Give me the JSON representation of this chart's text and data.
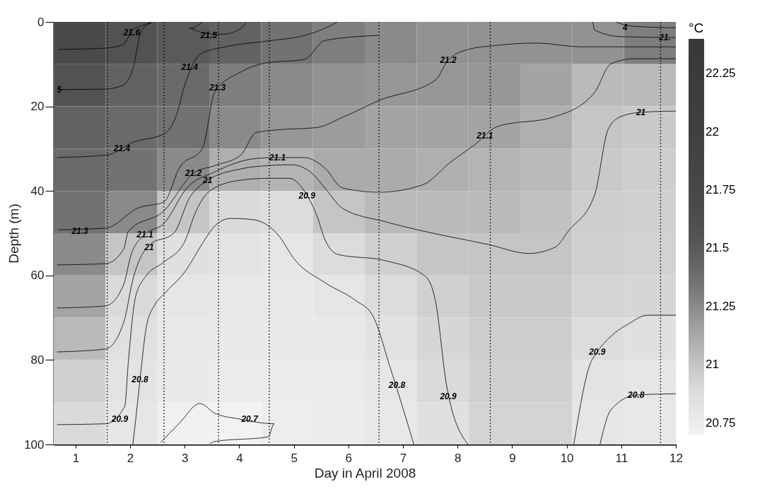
{
  "chart_data": {
    "type": "heatmap",
    "xlabel": "Day in April 2008",
    "ylabel": "Depth (m)",
    "clabel": "°C",
    "xlim": [
      0.6,
      12
    ],
    "xticks": [
      1,
      2,
      3,
      4,
      5,
      6,
      7,
      8,
      9,
      10,
      11,
      12
    ],
    "ylim": [
      100,
      0
    ],
    "yticks": [
      0,
      20,
      40,
      60,
      80,
      100
    ],
    "clim": [
      20.7,
      22.4
    ],
    "cticks": [
      20.75,
      21,
      21.25,
      21.5,
      21.75,
      22,
      22.25
    ],
    "grid": false,
    "x": [
      1.075,
      2.025,
      2.975,
      3.925,
      4.875,
      5.825,
      6.775,
      7.725,
      8.675,
      9.625,
      10.575,
      11.525
    ],
    "y": [
      5,
      15,
      25,
      35,
      45,
      55,
      65,
      75,
      85,
      95
    ],
    "cells": [
      [
        21.7,
        21.55,
        21.5,
        21.45,
        21.35,
        21.3,
        21.25,
        21.22,
        21.22,
        21.22,
        21.22,
        21.3
      ],
      [
        21.55,
        21.45,
        21.4,
        21.3,
        21.25,
        21.22,
        21.2,
        21.2,
        21.2,
        21.15,
        21.05,
        21.05
      ],
      [
        21.45,
        21.4,
        21.35,
        21.25,
        21.2,
        21.18,
        21.15,
        21.15,
        21.15,
        21.1,
        21.0,
        20.98
      ],
      [
        21.4,
        21.35,
        21.25,
        21.1,
        21.08,
        21.12,
        21.12,
        21.1,
        21.08,
        21.05,
        20.98,
        20.96
      ],
      [
        21.35,
        21.25,
        21.0,
        20.9,
        20.88,
        21.0,
        21.05,
        21.05,
        21.05,
        21.02,
        20.96,
        20.95
      ],
      [
        21.25,
        21.0,
        20.85,
        20.82,
        20.8,
        20.88,
        20.95,
        21.0,
        21.0,
        21.0,
        20.95,
        20.94
      ],
      [
        21.15,
        20.9,
        20.8,
        20.78,
        20.78,
        20.8,
        20.88,
        20.95,
        20.98,
        20.98,
        20.93,
        20.92
      ],
      [
        21.05,
        20.85,
        20.78,
        20.77,
        20.77,
        20.78,
        20.83,
        20.92,
        20.96,
        20.96,
        20.88,
        20.85
      ],
      [
        20.95,
        20.82,
        20.77,
        20.76,
        20.76,
        20.76,
        20.8,
        20.9,
        20.95,
        20.95,
        20.82,
        20.8
      ],
      [
        20.9,
        20.8,
        20.72,
        20.7,
        20.74,
        20.75,
        20.78,
        20.85,
        20.93,
        20.93,
        20.8,
        20.78
      ]
    ],
    "series": [
      {
        "type": "line",
        "color": "#000000",
        "x": [
          0.69,
          1.55,
          1.88,
          1.97,
          2.03,
          2.24,
          2.39
        ],
        "values": [
          6.5,
          6.2,
          5.3,
          3.5,
          2,
          0.8,
          0
        ]
      },
      {
        "type": "line",
        "color": "#000000",
        "x": [
          0.69,
          1.55,
          1.88,
          2.06,
          2.2,
          2.39
        ],
        "values": [
          16,
          15.9,
          14.9,
          10.7,
          2.3,
          0.2
        ]
      },
      {
        "type": "line",
        "color": "#000000",
        "x": [
          3.33,
          3.09,
          3.33,
          3.7,
          4.02,
          4.12
        ],
        "values": [
          0,
          1.5,
          2.6,
          2.9,
          1.6,
          0.2
        ]
      },
      {
        "type": "line",
        "color": "#000000",
        "x": [
          0.66,
          1.58,
          2.05,
          2.62,
          2.85,
          3.0,
          3.15,
          3.3,
          3.7,
          4.53,
          5.2,
          5.57,
          5.8
        ],
        "values": [
          32.1,
          31.5,
          28.5,
          26.5,
          22,
          15,
          10,
          7.5,
          6,
          4.5,
          3.2,
          1.5,
          0
        ]
      },
      {
        "type": "line",
        "color": "#000000",
        "x": [
          0.69,
          1.55,
          2.15,
          2.62,
          2.9,
          3.33,
          3.55,
          4.02,
          4.49,
          5.19,
          5.57,
          6.55
        ],
        "values": [
          49.2,
          48.8,
          44,
          42.6,
          34.6,
          29.8,
          16.6,
          11.9,
          9.7,
          8.9,
          4.4,
          3.2
        ]
      },
      {
        "type": "line",
        "color": "#000000",
        "x": [
          0.66,
          1.55,
          1.88,
          1.97,
          2.62,
          3.16,
          3.55,
          4.02,
          4.31,
          4.64,
          5.42,
          5.89,
          6.56,
          7.6,
          7.83,
          8.2,
          8.68,
          9.45,
          10.27,
          12.0
        ],
        "values": [
          57.5,
          57.2,
          53.8,
          49.5,
          44.7,
          35.8,
          34,
          31.6,
          26.2,
          25.6,
          25,
          22.6,
          18.6,
          13.7,
          9,
          6.5,
          5.6,
          5,
          5.9,
          5.9
        ]
      },
      {
        "type": "line",
        "color": "#000000",
        "x": [
          0.66,
          1.55,
          1.88,
          2.02,
          2.27,
          2.62,
          3.04,
          3.55,
          4.26,
          4.7,
          5.19,
          5.57,
          5.89,
          6.56,
          7.37,
          7.85,
          8.34,
          8.72,
          9.79,
          10.51,
          10.81,
          11.24,
          12.0
        ],
        "values": [
          67.7,
          67.2,
          62.2,
          55,
          50.3,
          47.7,
          39.3,
          35.5,
          32.4,
          32.1,
          32.1,
          34.6,
          39.3,
          40.3,
          38.5,
          33.4,
          28.8,
          24.8,
          22.4,
          16.7,
          9.9,
          8.7,
          8.7
        ]
      },
      {
        "type": "line",
        "color": "#000000",
        "x": [
          0.66,
          1.55,
          1.88,
          2.06,
          2.35,
          2.8,
          3.09,
          3.42,
          4.02,
          4.53,
          4.96,
          5.33,
          5.57,
          5.89,
          6.68,
          7.37,
          8.57,
          9.31,
          9.79,
          10.03,
          10.51,
          10.76,
          10.99,
          11.36,
          12.0
        ],
        "values": [
          78.1,
          77.4,
          71.2,
          60.5,
          52.8,
          50,
          41.6,
          37.5,
          34.8,
          34,
          33.8,
          35.8,
          39.3,
          44.1,
          47.3,
          49.5,
          52.7,
          54.8,
          53.3,
          49.5,
          41,
          25.4,
          22.4,
          21.4,
          21.1
        ]
      },
      {
        "type": "line",
        "color": "#000000",
        "x": [
          0.66,
          1.55,
          1.9,
          1.97,
          2.1,
          2.3,
          2.6,
          3.0,
          3.2,
          3.46,
          4.0,
          4.53,
          4.91,
          5.24,
          5.42,
          5.57,
          5.8,
          6.68,
          7.41,
          7.6,
          7.8,
          8.19
        ],
        "values": [
          95.3,
          95.1,
          91,
          80,
          65,
          60,
          57,
          52,
          45,
          40,
          37.5,
          37,
          37,
          41,
          45.8,
          51.5,
          55,
          56.5,
          60.2,
          66.4,
          86.1,
          100
        ]
      },
      {
        "type": "line",
        "color": "#000000",
        "x": [
          2.05,
          2.12,
          2.17,
          2.3,
          2.45,
          2.62,
          3.0,
          3.37,
          3.55,
          3.84,
          4.26,
          4.73,
          5.0,
          5.57,
          6.13,
          6.44,
          6.78,
          7.2
        ],
        "values": [
          100,
          92,
          86,
          72,
          67,
          64.4,
          59.2,
          51.5,
          48.3,
          46.5,
          46.8,
          50.7,
          56,
          61.7,
          65.9,
          69.4,
          82.4,
          100
        ]
      },
      {
        "type": "line",
        "color": "#000000",
        "x": [
          2.56,
          2.9,
          3.28,
          3.55,
          4.02,
          4.64,
          4.53,
          3.55,
          3.46
        ],
        "values": [
          99.5,
          95,
          90.3,
          92.6,
          94,
          95.1,
          98.2,
          99.3,
          99.8
        ]
      },
      {
        "type": "line",
        "color": "#000000",
        "x": [
          10.13,
          10.42,
          10.56,
          10.81,
          11.14,
          11.48,
          12.0
        ],
        "values": [
          100,
          81.3,
          78.1,
          74.4,
          71.4,
          69.4,
          69.4
        ]
      },
      {
        "type": "line",
        "color": "#000000",
        "x": [
          10.61,
          10.81,
          11.27,
          12.0
        ],
        "values": [
          100,
          91.8,
          88.3,
          88
        ]
      },
      {
        "type": "line",
        "color": "#000000",
        "x": [
          10.48,
          10.51,
          11.0,
          12.0
        ],
        "values": [
          0,
          1.9,
          3.5,
          3.7
        ]
      },
      {
        "type": "line",
        "color": "#000000",
        "x": [
          10.9,
          11.19,
          12.0
        ],
        "values": [
          0,
          1,
          1.4
        ]
      }
    ],
    "ref_lines": [
      {
        "axis": "x",
        "value": 1.58,
        "line_style": "dotted",
        "color": "#000000"
      },
      {
        "axis": "x",
        "value": 2.62,
        "line_style": "dotted",
        "color": "#000000"
      },
      {
        "axis": "x",
        "value": 3.62,
        "line_style": "dotted",
        "color": "#000000"
      },
      {
        "axis": "x",
        "value": 4.55,
        "line_style": "dotted",
        "color": "#000000"
      },
      {
        "axis": "x",
        "value": 6.56,
        "line_style": "dotted",
        "color": "#000000"
      },
      {
        "axis": "x",
        "value": 8.6,
        "line_style": "dotted",
        "color": "#000000"
      },
      {
        "axis": "x",
        "value": 11.72,
        "line_style": "dotted",
        "color": "#000000"
      }
    ],
    "annotations": [
      {
        "text": "21.6",
        "x": 2.03,
        "y": 2.5
      },
      {
        "text": "5",
        "x": 0.7,
        "y": 16
      },
      {
        "text": "21.5",
        "x": 3.44,
        "y": 3.2
      },
      {
        "text": "21.4",
        "x": 3.09,
        "y": 10.7
      },
      {
        "text": "21.3",
        "x": 3.6,
        "y": 15.5
      },
      {
        "text": "21.4",
        "x": 1.85,
        "y": 30
      },
      {
        "text": "21.3",
        "x": 1.08,
        "y": 49.5
      },
      {
        "text": "21.2",
        "x": 3.16,
        "y": 35.8
      },
      {
        "text": "21",
        "x": 3.42,
        "y": 37.5
      },
      {
        "text": "21.1",
        "x": 4.7,
        "y": 32.1
      },
      {
        "text": "20.9",
        "x": 5.24,
        "y": 41.1
      },
      {
        "text": "21.1",
        "x": 2.27,
        "y": 50.3
      },
      {
        "text": "21",
        "x": 2.35,
        "y": 53.3
      },
      {
        "text": "20.8",
        "x": 2.18,
        "y": 84.6
      },
      {
        "text": "20.9",
        "x": 1.81,
        "y": 94
      },
      {
        "text": "20.7",
        "x": 4.19,
        "y": 94
      },
      {
        "text": "21.2",
        "x": 7.83,
        "y": 9
      },
      {
        "text": "21.1",
        "x": 8.5,
        "y": 27
      },
      {
        "text": "21",
        "x": 11.36,
        "y": 21.4
      },
      {
        "text": "4",
        "x": 11.07,
        "y": 1.3
      },
      {
        "text": "21.",
        "x": 11.8,
        "y": 3.7
      },
      {
        "text": "20.8",
        "x": 6.89,
        "y": 86
      },
      {
        "text": "20.9",
        "x": 7.83,
        "y": 88.6
      },
      {
        "text": "20.9",
        "x": 10.56,
        "y": 78.1
      },
      {
        "text": "20.8",
        "x": 11.27,
        "y": 88.3
      }
    ]
  }
}
